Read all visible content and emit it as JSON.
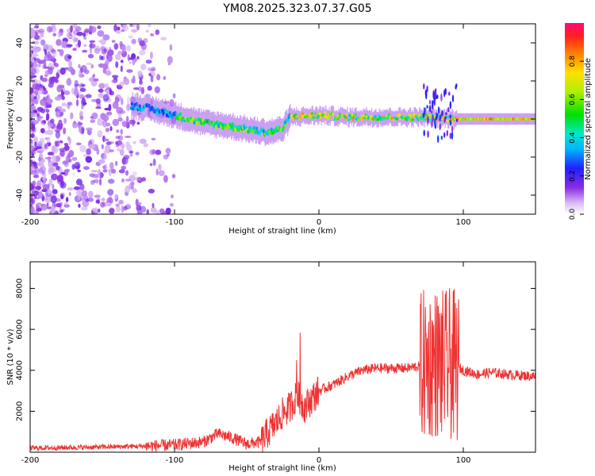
{
  "figure": {
    "title": "YM08.2025.323.07.37.G05"
  },
  "chart_data": [
    {
      "type": "heatmap",
      "xlabel": "Height of straight line (km)",
      "ylabel": "Frequency (Hz)",
      "xlim": [
        -200,
        150
      ],
      "ylim": [
        -50,
        50
      ],
      "xticks": [
        -200,
        -100,
        0,
        100
      ],
      "yticks": [
        -40,
        -20,
        0,
        20,
        40
      ],
      "colorbar": {
        "label": "Normalized spectral amplitude",
        "range": [
          0,
          1
        ],
        "ticks": [
          0.0,
          0.2,
          0.4,
          0.6,
          0.8
        ],
        "tick_labels": [
          "0.0",
          "0.2",
          "0.4",
          "0.6",
          "0.8"
        ]
      },
      "ridge": {
        "description_points_x_km": [
          -130,
          -120,
          -100,
          -80,
          -60,
          -45,
          -35,
          -25,
          -20,
          0,
          20,
          60,
          75,
          95,
          150
        ],
        "description_points_freq_hz": [
          7,
          6,
          2,
          -2,
          -4,
          -6,
          -7,
          -5,
          1,
          2,
          1,
          1,
          1,
          0,
          0
        ]
      }
    },
    {
      "type": "line",
      "xlabel": "Height of straight line (km)",
      "ylabel": "SNR (10 * v/v)",
      "xlim": [
        -200,
        150
      ],
      "ylim": [
        0,
        9300
      ],
      "xticks": [
        -200,
        -100,
        0,
        100
      ],
      "yticks": [
        2000,
        4000,
        6000,
        8000
      ],
      "series": [
        {
          "name": "SNR",
          "color": "#ee3333",
          "x": [
            -200,
            -150,
            -120,
            -100,
            -80,
            -70,
            -60,
            -50,
            -40,
            -35,
            -30,
            -25,
            -20,
            -15,
            -10,
            0,
            10,
            20,
            30,
            40,
            60,
            70,
            75,
            80,
            85,
            90,
            95,
            100,
            110,
            120,
            130,
            140,
            150
          ],
          "y": [
            200,
            250,
            300,
            350,
            500,
            900,
            700,
            400,
            500,
            1000,
            1400,
            1900,
            2200,
            2800,
            2200,
            3000,
            3300,
            3700,
            4000,
            4100,
            4100,
            4200,
            4300,
            4400,
            4200,
            4300,
            4200,
            4000,
            3800,
            3900,
            3800,
            3750,
            3700
          ]
        }
      ]
    }
  ]
}
